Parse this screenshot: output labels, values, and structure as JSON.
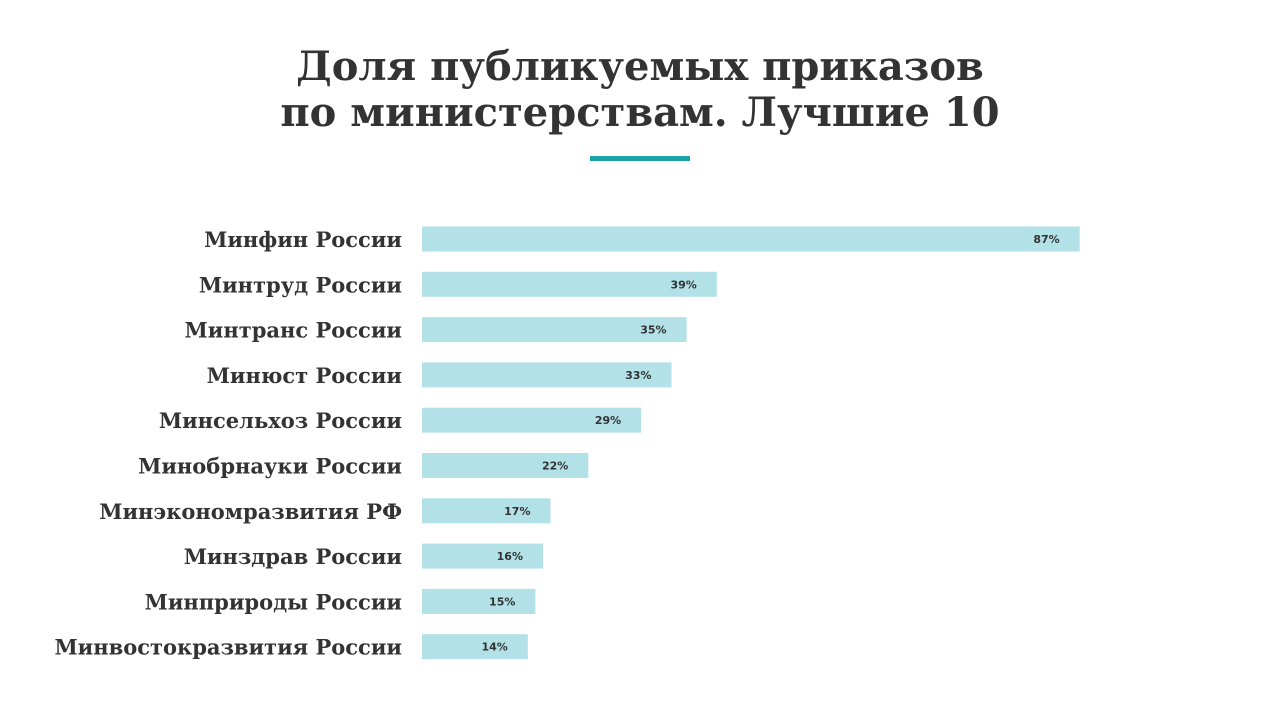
{
  "colors": {
    "bar": "#b2e1e7",
    "accent": "#19a3a9",
    "text": "#333333"
  },
  "chart_data": {
    "type": "bar",
    "orientation": "horizontal",
    "title_lines": [
      "Доля публикуемых приказов",
      "по министерствам. Лучшие 10"
    ],
    "categories": [
      "Минфин России",
      "Минтруд России",
      "Минтранс России",
      "Минюст России",
      "Минсельхоз России",
      "Минобрнауки России",
      "Минэкономразвития РФ",
      "Минздрав России",
      "Минприроды России",
      "Минвостокразвития России"
    ],
    "values": [
      87,
      39,
      35,
      33,
      29,
      22,
      17,
      16,
      15,
      14
    ],
    "value_labels": [
      "87%",
      "39%",
      "35%",
      "33%",
      "29%",
      "22%",
      "17%",
      "16%",
      "15%",
      "14%"
    ],
    "unit": "%",
    "xlim": [
      0,
      100
    ],
    "grid": false,
    "legend": "none"
  }
}
